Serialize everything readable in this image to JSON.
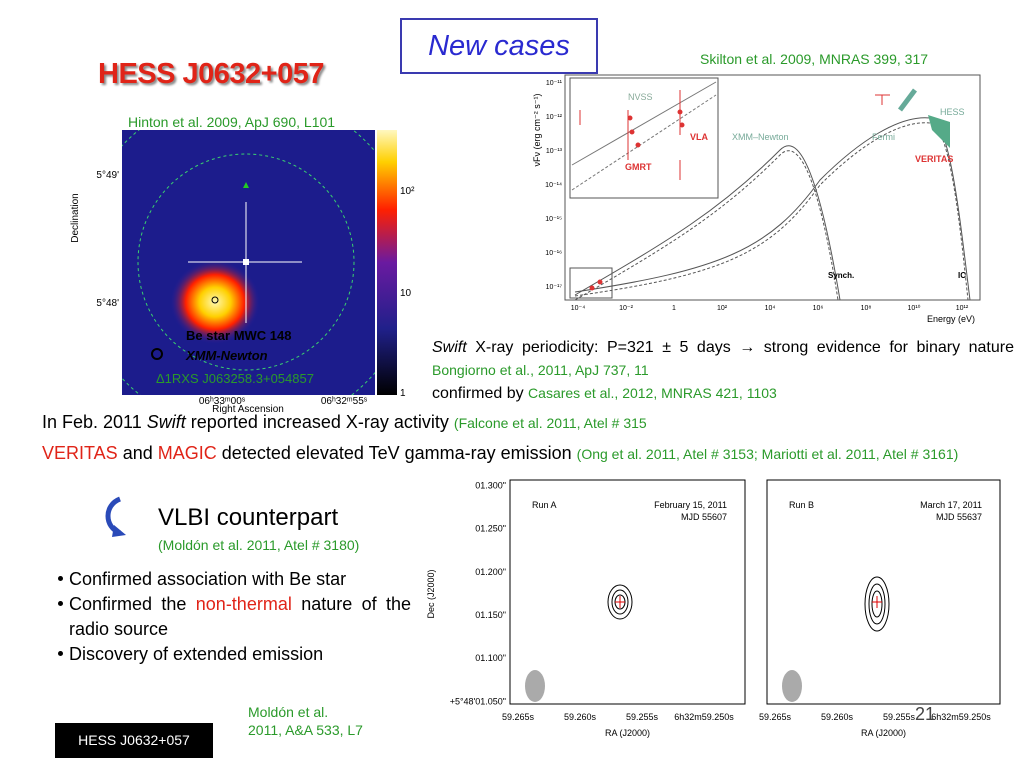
{
  "header": {
    "tag": "New cases",
    "title": "HESS J0632+057"
  },
  "skymap": {
    "citation": "Hinton et al. 2009, ApJ 690, L101",
    "y_axis": "Declination",
    "x_axis": "Right Ascension",
    "dec_ticks": [
      "5°49'",
      "5°48'"
    ],
    "ra_ticks": [
      "06ʰ33ᵐ00ˢ",
      "06ʰ32ᵐ55ˢ"
    ],
    "colorbar_ticks": [
      "10²",
      "10",
      "1"
    ],
    "legend": [
      "Be star MWC 148",
      "XMM-Newton",
      "Δ1RXS J063258.3+054857"
    ]
  },
  "sed": {
    "citation": "Skilton et al. 2009, MNRAS 399, 317",
    "y_axis": "νFν (erg cm⁻² s⁻¹)",
    "x_axis": "Energy (eV)",
    "y_ticks": [
      "10⁻¹¹",
      "10⁻¹²",
      "10⁻¹³",
      "10⁻¹⁴",
      "10⁻¹⁵",
      "10⁻¹⁶",
      "10⁻¹⁷"
    ],
    "x_ticks": [
      "10⁻⁴",
      "10⁻²",
      "1",
      "10²",
      "10⁴",
      "10⁶",
      "10⁸",
      "10¹⁰",
      "10¹²"
    ],
    "labels": {
      "nvss": "NVSS",
      "vla": "VLA",
      "gmrt": "GMRT",
      "xmm": "XMM–Newton",
      "fermi": "Fermi",
      "hess": "HESS",
      "veritas": "VERITAS",
      "synch": "Synch.",
      "ic": "IC"
    }
  },
  "swift_note": {
    "line1": {
      "emph": "Swift",
      "text": "X-ray periodicity: P=321 ± 5 days → strong evidence for binary nature",
      "citation": "Bongiorno et al., 2011, ApJ 737, 11"
    },
    "line2": {
      "text": "confirmed by",
      "citation": "Casares et al., 2012, MNRAS 421, 1103"
    }
  },
  "findings": {
    "line1": {
      "text1": "In Feb. 2011",
      "emph": "Swift",
      "text2": "reported increased X-ray activity",
      "citation": "(Falcone et al. 2011, Atel # 315"
    },
    "line2": {
      "veritas": "VERITAS",
      "and": "and",
      "magic": "MAGIC",
      "text": "detected elevated TeV gamma-ray emission",
      "citation": "(Ong et al. 2011, Atel # 3153; Mariotti et al. 2011, Atel # 3161)"
    }
  },
  "vlbi": {
    "title": "VLBI counterpart",
    "citation": "(Moldón et al. 2011, Atel # 3180)",
    "bullets": [
      {
        "text": "Confirmed association with Be star"
      },
      {
        "text": "Confirmed the",
        "highlight": "non-thermal",
        "rest": "nature of the radio source"
      },
      {
        "text": "Discovery of extended emission"
      }
    ],
    "reference": [
      "Moldón et al.",
      "2011, A&A 533, L7"
    ],
    "plot": {
      "y_axis": "Dec (J2000)",
      "x_axis": "RA (J2000)",
      "y_ticks": [
        "01.300\"",
        "01.250\"",
        "01.200\"",
        "01.150\"",
        "01.100\"",
        "+5°48'01.050\""
      ],
      "x_ticks": [
        "59.265s",
        "59.260s",
        "59.255s",
        "6h32m59.250s"
      ],
      "panels": [
        {
          "run": "Run A",
          "date": "February 15, 2011",
          "mjd": "MJD 55607"
        },
        {
          "run": "Run B",
          "date": "March 17, 2011",
          "mjd": "MJD 55637"
        }
      ]
    }
  },
  "footer": {
    "label": "HESS J0632+057",
    "page": "21"
  }
}
